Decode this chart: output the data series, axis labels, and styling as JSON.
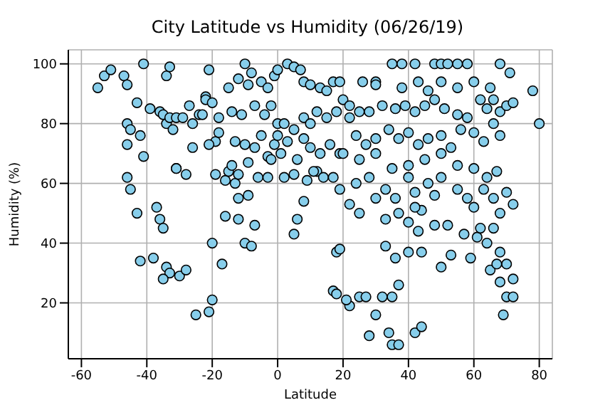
{
  "chart_data": {
    "type": "scatter",
    "title": "City Latitude vs Humidity (06/26/19)",
    "xlabel": "Latitude",
    "ylabel": "Humidity (%)",
    "x": [
      -55,
      -53,
      -51,
      -47,
      -46,
      -41,
      -43,
      -39,
      -46,
      -45,
      -46,
      -42,
      -41,
      -46,
      -45,
      -43,
      -36,
      -35,
      -34,
      -33,
      -31,
      -29,
      -27,
      -26,
      -24,
      -23,
      -21,
      -22,
      -22,
      -20,
      -19,
      -18,
      -18,
      -37,
      -36,
      -35,
      -34,
      -33,
      -31,
      -32,
      -31,
      -28,
      -26,
      -21,
      -19,
      -16,
      -15,
      -13,
      -12,
      -16,
      -10,
      -8,
      -7,
      -12,
      -9,
      -34,
      -30,
      -33,
      -28,
      -38,
      -42,
      -35,
      -25,
      -21,
      -20,
      -20,
      -17,
      -15,
      -12,
      -10,
      -8,
      -9,
      -5,
      -3,
      -1,
      0,
      3,
      5,
      7,
      8,
      10,
      13,
      15,
      17,
      19,
      -14,
      -11,
      -7,
      -4,
      -2,
      0,
      2,
      5,
      8,
      10,
      12,
      15,
      18,
      20,
      22,
      -13,
      -10,
      -7,
      -5,
      -3,
      -1,
      1,
      3,
      6,
      8,
      10,
      13,
      16,
      19,
      -14,
      -12,
      -9,
      -6,
      -3,
      2,
      5,
      9,
      12,
      14,
      17,
      19,
      8,
      5,
      6,
      11,
      0,
      -2,
      30,
      35,
      38,
      42,
      48,
      50,
      52,
      55,
      58,
      68,
      71,
      78,
      80,
      26,
      30,
      38,
      43,
      46,
      50,
      55,
      60,
      65,
      22,
      25,
      28,
      32,
      36,
      39,
      42,
      45,
      48,
      51,
      55,
      58,
      62,
      64,
      66,
      68,
      70,
      72,
      24,
      27,
      30,
      34,
      37,
      40,
      43,
      46,
      50,
      53,
      56,
      60,
      63,
      66,
      68,
      20,
      25,
      30,
      35,
      40,
      45,
      50,
      55,
      60,
      64,
      67,
      24,
      28,
      33,
      36,
      40,
      42,
      46,
      50,
      55,
      58,
      60,
      63,
      66,
      68,
      70,
      72,
      22,
      25,
      30,
      33,
      37,
      40,
      44,
      48,
      52,
      57,
      61,
      64,
      66,
      68,
      70,
      72,
      18,
      19,
      17,
      18,
      22,
      21,
      25,
      27,
      32,
      35,
      37,
      40,
      44,
      50,
      53,
      59,
      62,
      68,
      70,
      72,
      69,
      28,
      30,
      34,
      35,
      37,
      42,
      44,
      33,
      36,
      43,
      42,
      48,
      65,
      67
    ],
    "values": [
      92,
      96,
      98,
      96,
      93,
      100,
      87,
      85,
      80,
      78,
      73,
      76,
      69,
      62,
      58,
      50,
      84,
      83,
      80,
      82,
      82,
      82,
      86,
      80,
      83,
      83,
      98,
      89,
      88,
      87,
      74,
      82,
      77,
      52,
      48,
      45,
      96,
      99,
      65,
      78,
      65,
      63,
      72,
      73,
      63,
      61,
      64,
      60,
      55,
      49,
      40,
      39,
      46,
      48,
      56,
      32,
      29,
      30,
      31,
      35,
      34,
      28,
      16,
      17,
      21,
      40,
      33,
      92,
      95,
      100,
      97,
      93,
      94,
      92,
      96,
      98,
      100,
      99,
      98,
      94,
      93,
      92,
      91,
      94,
      94,
      84,
      83,
      86,
      83,
      86,
      80,
      80,
      78,
      82,
      80,
      84,
      82,
      84,
      88,
      86,
      74,
      73,
      72,
      76,
      69,
      73,
      70,
      74,
      68,
      75,
      72,
      70,
      73,
      70,
      66,
      63,
      67,
      62,
      62,
      62,
      63,
      61,
      64,
      62,
      62,
      58,
      54,
      43,
      48,
      64,
      76,
      68,
      94,
      100,
      100,
      100,
      100,
      100,
      100,
      100,
      100,
      100,
      97,
      91,
      80,
      94,
      93,
      92,
      94,
      91,
      94,
      92,
      94,
      92,
      82,
      84,
      84,
      86,
      85,
      86,
      84,
      86,
      88,
      85,
      83,
      82,
      88,
      85,
      88,
      84,
      86,
      87,
      76,
      73,
      75,
      78,
      75,
      77,
      73,
      75,
      76,
      72,
      78,
      77,
      74,
      80,
      76,
      70,
      68,
      70,
      65,
      66,
      68,
      70,
      66,
      65,
      62,
      64,
      60,
      62,
      58,
      55,
      62,
      57,
      60,
      62,
      58,
      55,
      52,
      58,
      55,
      50,
      57,
      53,
      53,
      50,
      55,
      48,
      50,
      47,
      51,
      46,
      46,
      43,
      42,
      40,
      45,
      37,
      33,
      28,
      37,
      38,
      24,
      23,
      19,
      21,
      22,
      22,
      22,
      22,
      26,
      37,
      37,
      32,
      36,
      35,
      45,
      27,
      22,
      22,
      16,
      9,
      16,
      10,
      6,
      6,
      10,
      12,
      39,
      35,
      44,
      52,
      56,
      31,
      33
    ],
    "color": "#87ceeb",
    "marker": "circle",
    "grid": true,
    "xlim": [
      -64,
      84
    ],
    "xticks": [
      -60,
      -40,
      -20,
      0,
      20,
      40,
      60,
      80
    ],
    "ylim": [
      1.3,
      104.7
    ],
    "yticks": [
      20,
      40,
      60,
      80,
      100
    ]
  }
}
